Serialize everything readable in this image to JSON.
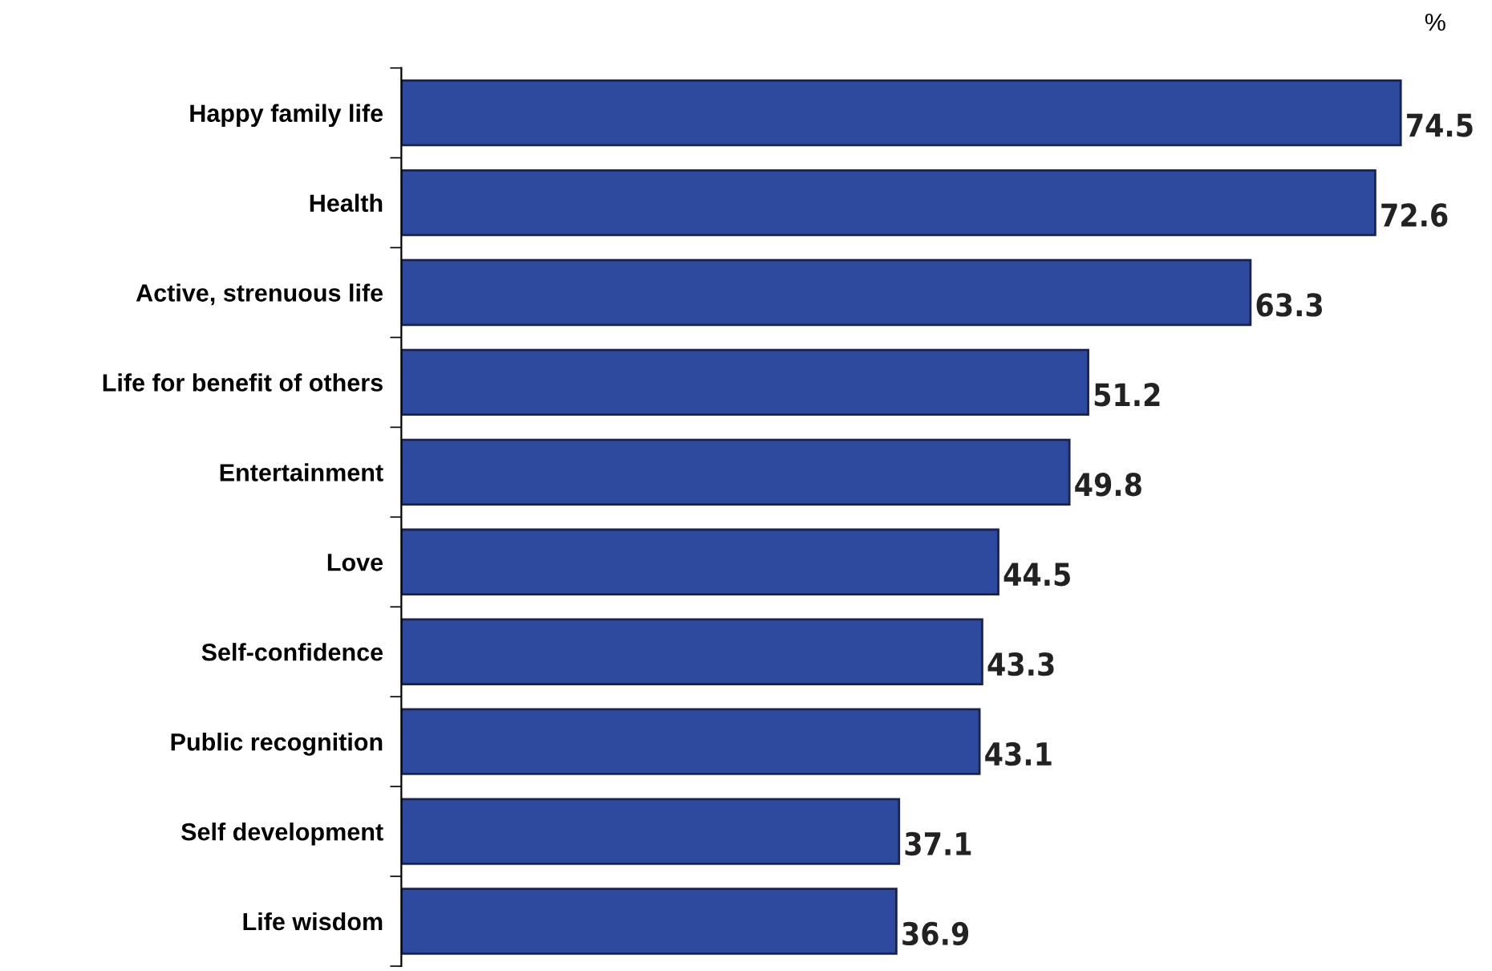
{
  "chart_data": {
    "type": "bar",
    "orientation": "horizontal",
    "categories": [
      "Happy family life",
      "Health",
      "Active, strenuous life",
      "Life for benefit of others",
      "Entertainment",
      "Love",
      "Self-confidence",
      "Public recognition",
      "Self development",
      "Life wisdom"
    ],
    "values": [
      74.5,
      72.6,
      63.3,
      51.2,
      49.8,
      44.5,
      43.3,
      43.1,
      37.1,
      36.9
    ],
    "color": "#2e4a9e",
    "data_labels": true,
    "grid": false,
    "legend": false,
    "annotations": [
      "%"
    ]
  }
}
